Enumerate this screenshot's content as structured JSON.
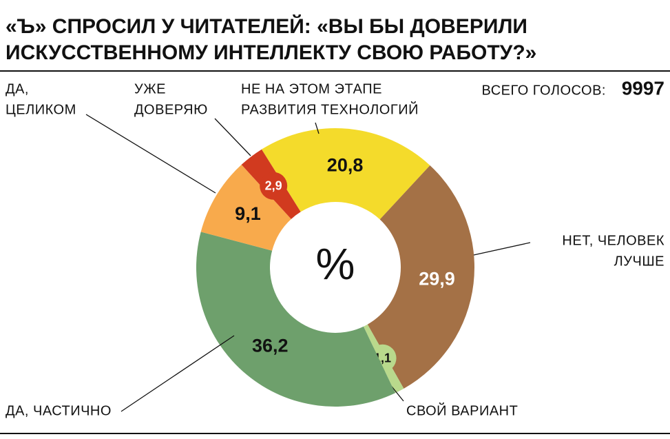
{
  "chart_data": {
    "type": "donut",
    "title": [
      "«Ъ» СПРОСИЛ У ЧИТАТЕЛЕЙ: «ВЫ БЫ ДОВЕРИЛИ",
      "ИСКУССТВЕННОМУ ИНТЕЛЛЕКТУ СВОЮ РАБОТУ?»"
    ],
    "total_label": "ВСЕГО ГОЛОСОВ:",
    "total": 9997,
    "center_label": "%",
    "categories": [
      [
        "НЕ НА ЭТОМ ЭТАПЕ",
        "РАЗВИТИЯ ТЕХНОЛОГИЙ"
      ],
      [
        "НЕТ, ЧЕЛОВЕК",
        "ЛУЧШЕ"
      ],
      [
        "СВОЙ ВАРИАНТ"
      ],
      [
        "ДА, ЧАСТИЧНО"
      ],
      [
        "ДА,",
        "ЦЕЛИКОМ"
      ],
      [
        "УЖЕ",
        "ДОВЕРЯЮ"
      ]
    ],
    "values": [
      20.8,
      29.9,
      1.1,
      36.2,
      9.1,
      2.9
    ],
    "value_labels": [
      "20,8",
      "29,9",
      "1,1",
      "36,2",
      "9,1",
      "2,9"
    ],
    "colors": [
      "#f4db2b",
      "#a47146",
      "#b9d98c",
      "#6ea06c",
      "#f8aa4c",
      "#d13a1f"
    ]
  }
}
